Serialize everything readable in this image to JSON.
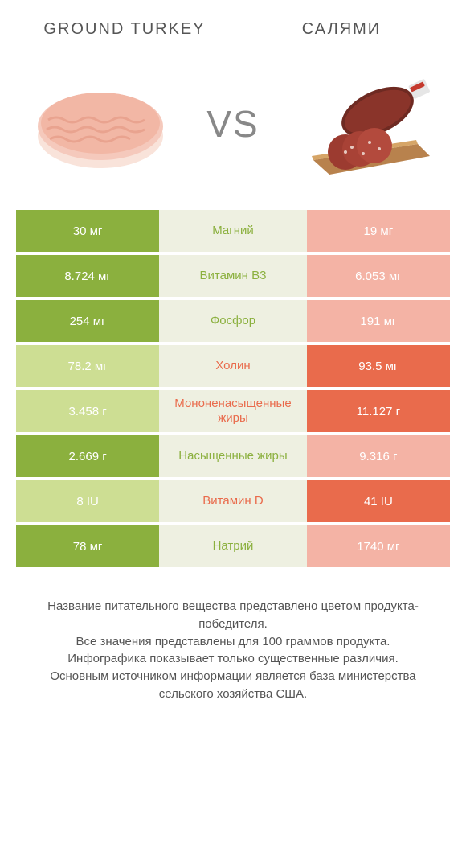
{
  "colors": {
    "left": "#8bb03e",
    "right": "#e96b4c",
    "left_light": "#cdde93",
    "right_light": "#f4b3a5",
    "bg_middle": "#eef0e1",
    "text_primary": "#555555",
    "gray_vs": "#888888"
  },
  "header": {
    "left_title": "GROUND TURKEY",
    "right_title": "САЛЯМИ",
    "vs_label": "VS"
  },
  "table": {
    "rows": [
      {
        "nutrient": "Магний",
        "left": "30 мг",
        "right": "19 мг",
        "winner": "left"
      },
      {
        "nutrient": "Витамин B3",
        "left": "8.724 мг",
        "right": "6.053 мг",
        "winner": "left"
      },
      {
        "nutrient": "Фосфор",
        "left": "254 мг",
        "right": "191 мг",
        "winner": "left"
      },
      {
        "nutrient": "Холин",
        "left": "78.2 мг",
        "right": "93.5 мг",
        "winner": "right"
      },
      {
        "nutrient": "Мононенасыщенные жиры",
        "left": "3.458 г",
        "right": "11.127 г",
        "winner": "right"
      },
      {
        "nutrient": "Насыщенные жиры",
        "left": "2.669 г",
        "right": "9.316 г",
        "winner": "left"
      },
      {
        "nutrient": "Витамин D",
        "left": "8 IU",
        "right": "41 IU",
        "winner": "right"
      },
      {
        "nutrient": "Натрий",
        "left": "78 мг",
        "right": "1740 мг",
        "winner": "left"
      }
    ]
  },
  "footnote": {
    "line1": "Название питательного вещества представлено цветом продукта-победителя.",
    "line2": "Все значения представлены для 100 граммов продукта.",
    "line3": "Инфографика показывает только существенные различия.",
    "line4": "Основным источником информации является база министерства сельского хозяйства США."
  }
}
